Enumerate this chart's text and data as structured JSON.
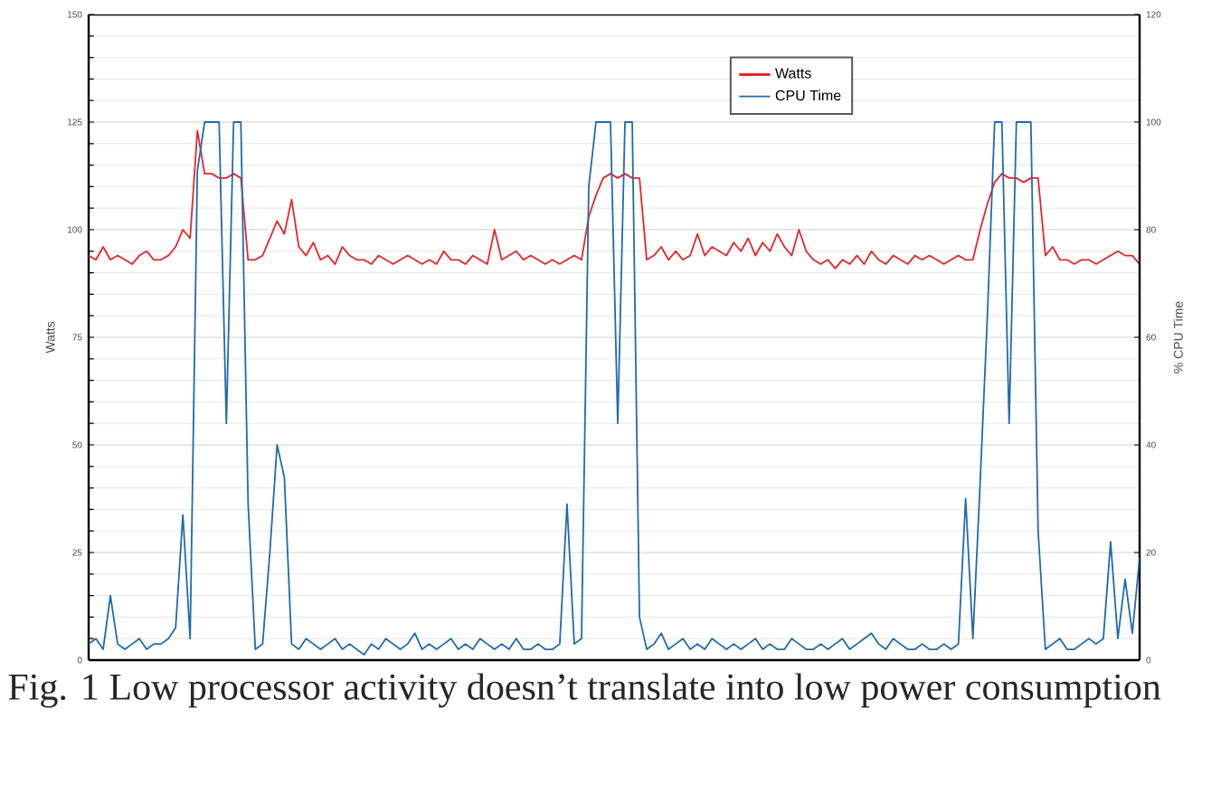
{
  "chart_data": {
    "type": "line",
    "categories": [
      null,
      null,
      null,
      null,
      null,
      null,
      null,
      null,
      null,
      null,
      null,
      null,
      null,
      null,
      null,
      null,
      null,
      null,
      null,
      null,
      null,
      null,
      null,
      null,
      null,
      null,
      null,
      null,
      null,
      null,
      null,
      null,
      null,
      null,
      null,
      null,
      null,
      null,
      null,
      null,
      null,
      null,
      null,
      null,
      null,
      null,
      null,
      null,
      null,
      null,
      null,
      null,
      null,
      null,
      null,
      null,
      null,
      null,
      null,
      null,
      null,
      null,
      null,
      null,
      null,
      null,
      null,
      null,
      null,
      null,
      null,
      null,
      null,
      null,
      null,
      null,
      null,
      null,
      null,
      null,
      null,
      null,
      null,
      null,
      null,
      null,
      null,
      null,
      null,
      null,
      null,
      null,
      null,
      null,
      null,
      null,
      null,
      null,
      null,
      null,
      null,
      null,
      null,
      null,
      null,
      null,
      null,
      null,
      null,
      null,
      null,
      null,
      null,
      null,
      null,
      null,
      null,
      null,
      null,
      null,
      null,
      null,
      null,
      null,
      null,
      null,
      null,
      null,
      null,
      null,
      null,
      null,
      null,
      null,
      null,
      null,
      null,
      null,
      null,
      null,
      null,
      null,
      null,
      null,
      null,
      null
    ],
    "series": [
      {
        "name": "Watts",
        "color": "#e8262b",
        "values": [
          94,
          93,
          96,
          93,
          94,
          93,
          92,
          94,
          95,
          93,
          93,
          94,
          96,
          100,
          98,
          123,
          113,
          113,
          112,
          112,
          113,
          112,
          93,
          93,
          94,
          98,
          102,
          99,
          107,
          96,
          94,
          97,
          93,
          94,
          92,
          96,
          94,
          93,
          93,
          92,
          94,
          93,
          92,
          93,
          94,
          93,
          92,
          93,
          92,
          95,
          93,
          93,
          92,
          94,
          93,
          92,
          100,
          93,
          94,
          95,
          93,
          94,
          93,
          92,
          93,
          92,
          93,
          94,
          93,
          103,
          108,
          112,
          113,
          112,
          113,
          112,
          112,
          93,
          94,
          96,
          93,
          95,
          93,
          94,
          99,
          94,
          96,
          95,
          94,
          97,
          95,
          98,
          94,
          97,
          95,
          99,
          96,
          94,
          100,
          95,
          93,
          92,
          93,
          91,
          93,
          92,
          94,
          92,
          95,
          93,
          92,
          94,
          93,
          92,
          94,
          93,
          94,
          93,
          92,
          93,
          94,
          93,
          93,
          100,
          106,
          111,
          113,
          112,
          112,
          111,
          112,
          112,
          94,
          96,
          93,
          93,
          92,
          93,
          93,
          92,
          93,
          94,
          95,
          94,
          94,
          92
        ]
      },
      {
        "name": "CPU Time",
        "color": "#1f6bb0",
        "axis": "y2",
        "values": [
          3,
          4,
          2,
          12,
          3,
          2,
          3,
          4,
          2,
          3,
          3,
          4,
          6,
          27,
          4,
          91,
          100,
          100,
          100,
          44,
          100,
          100,
          29,
          2,
          3,
          20,
          40,
          34,
          3,
          2,
          4,
          3,
          2,
          3,
          4,
          2,
          3,
          2,
          1,
          3,
          2,
          4,
          3,
          2,
          3,
          5,
          2,
          3,
          2,
          3,
          4,
          2,
          3,
          2,
          4,
          3,
          2,
          3,
          2,
          4,
          2,
          2,
          3,
          2,
          2,
          3,
          29,
          3,
          4,
          88,
          100,
          100,
          100,
          44,
          100,
          100,
          8,
          2,
          3,
          5,
          2,
          3,
          4,
          2,
          3,
          2,
          4,
          3,
          2,
          3,
          2,
          3,
          4,
          2,
          3,
          2,
          2,
          4,
          3,
          2,
          2,
          3,
          2,
          3,
          4,
          2,
          3,
          4,
          5,
          3,
          2,
          4,
          3,
          2,
          2,
          3,
          2,
          2,
          3,
          2,
          3,
          30,
          4,
          33,
          64,
          100,
          100,
          44,
          100,
          100,
          100,
          24,
          2,
          3,
          4,
          2,
          2,
          3,
          4,
          3,
          4,
          22,
          4,
          15,
          5,
          19
        ]
      }
    ],
    "ylabel": "Watts",
    "y2label": "% CPU Time",
    "ylim": [
      0,
      150
    ],
    "yticks": [
      0,
      25,
      50,
      75,
      100,
      125,
      150
    ],
    "y2lim": [
      0,
      120
    ],
    "y2ticks": [
      0,
      20,
      40,
      60,
      80,
      100,
      120
    ],
    "grid": "y",
    "legend": "top right",
    "annotations": [
      "Fig. 1  Low processor activity doesn’t translate into low power consumption"
    ]
  }
}
